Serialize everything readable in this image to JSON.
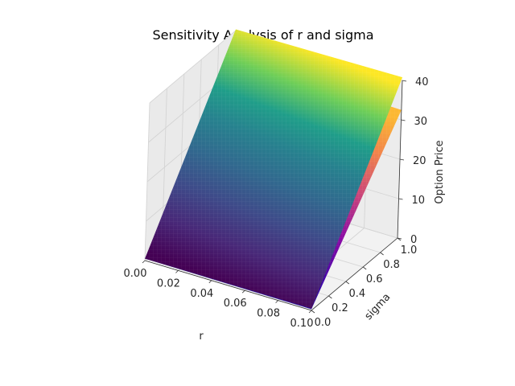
{
  "chart_data": {
    "type": "surface3d",
    "title": "Sensitivity Analysis of r and sigma",
    "xlabel": "r",
    "ylabel": "sigma",
    "zlabel": "Option Price",
    "xlim": [
      0,
      0.1
    ],
    "ylim": [
      0,
      1.0
    ],
    "zlim": [
      0,
      40
    ],
    "x_ticks": [
      "0.00",
      "0.02",
      "0.04",
      "0.06",
      "0.08",
      "0.10"
    ],
    "y_ticks": [
      "0.0",
      "0.2",
      "0.4",
      "0.6",
      "0.8",
      "1.0"
    ],
    "z_ticks": [
      "0",
      "10",
      "20",
      "30",
      "40"
    ],
    "grid": true,
    "series": [
      {
        "colormap": "viridis",
        "x": [
          0,
          0.1
        ],
        "y": [
          0,
          1.0
        ],
        "z": [
          [
            0.5,
            0.5
          ],
          [
            40.3,
            40.8
          ]
        ]
      },
      {
        "colormap": "plasma",
        "x": [
          0,
          0.1
        ],
        "y": [
          0,
          1.0
        ],
        "z": [
          [
            0.5,
            0.3
          ],
          [
            33.5,
            32.5
          ]
        ]
      }
    ]
  }
}
